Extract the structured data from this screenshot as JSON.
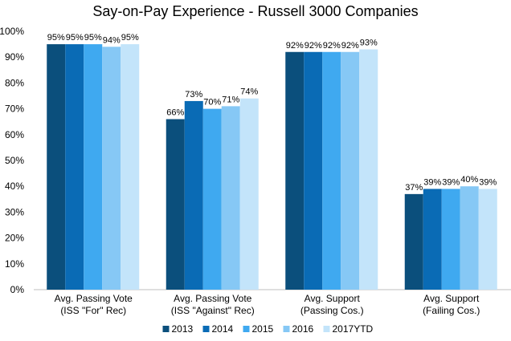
{
  "chart_data": {
    "type": "bar",
    "title": "Say-on-Pay Experience - Russell 3000 Companies",
    "categories": [
      [
        "Avg. Passing Vote",
        "(ISS \"For\" Rec)"
      ],
      [
        "Avg. Passing Vote",
        "(ISS \"Against\" Rec)"
      ],
      [
        "Avg. Support",
        "(Passing Cos.)"
      ],
      [
        "Avg. Support",
        "(Failing Cos.)"
      ]
    ],
    "series": [
      {
        "name": "2013",
        "color": "#0b4f7c",
        "values": [
          95,
          66,
          92,
          37
        ]
      },
      {
        "name": "2014",
        "color": "#0a6bb5",
        "values": [
          95,
          73,
          92,
          39
        ]
      },
      {
        "name": "2015",
        "color": "#3fa9f0",
        "values": [
          95,
          70,
          92,
          39
        ]
      },
      {
        "name": "2016",
        "color": "#86c8f5",
        "values": [
          94,
          71,
          92,
          40
        ]
      },
      {
        "name": "2017YTD",
        "color": "#c3e4fa",
        "values": [
          95,
          74,
          93,
          39
        ]
      }
    ],
    "value_suffix": "%",
    "ylim": [
      0,
      100
    ],
    "yticks": [
      "0%",
      "10%",
      "20%",
      "30%",
      "40%",
      "50%",
      "60%",
      "70%",
      "80%",
      "90%",
      "100%"
    ],
    "xlabel": "",
    "ylabel": "",
    "grid": false,
    "legend": "bottom"
  }
}
